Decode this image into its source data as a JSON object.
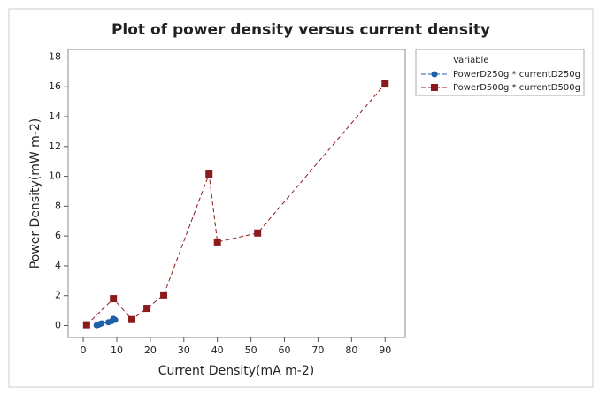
{
  "chart_data": {
    "type": "scatter",
    "title": "Plot of power density versus current density",
    "x_label": "Current Density(mA m-2)",
    "y_label": "Power Density(mW m-2)",
    "legend_title": "Variable",
    "connect": true,
    "series": [
      {
        "name": "PowerD250g * currentD250g",
        "color": "#1f5fa8",
        "marker": "circle",
        "x": [
          4,
          4.5,
          5,
          5.5,
          7.5,
          8.5,
          9,
          9.5
        ],
        "values": [
          0.02,
          0.05,
          0.1,
          0.15,
          0.22,
          0.3,
          0.45,
          0.38
        ]
      },
      {
        "name": "PowerD500g * currentD500g",
        "color": "#8b1a1a",
        "marker": "square",
        "x": [
          1,
          9,
          14.5,
          19,
          24,
          37.5,
          40,
          52,
          90
        ],
        "values": [
          0.05,
          1.8,
          0.4,
          1.15,
          2.05,
          10.15,
          5.6,
          6.2,
          16.2
        ]
      }
    ],
    "xlim": [
      -4.5,
      96
    ],
    "xticks": [
      0,
      10,
      20,
      30,
      40,
      50,
      60,
      70,
      80,
      90
    ],
    "ylim": [
      -0.8,
      18.5
    ],
    "yticks": [
      0,
      2,
      4,
      6,
      8,
      10,
      12,
      14,
      16,
      18
    ],
    "legend_position": "right"
  }
}
